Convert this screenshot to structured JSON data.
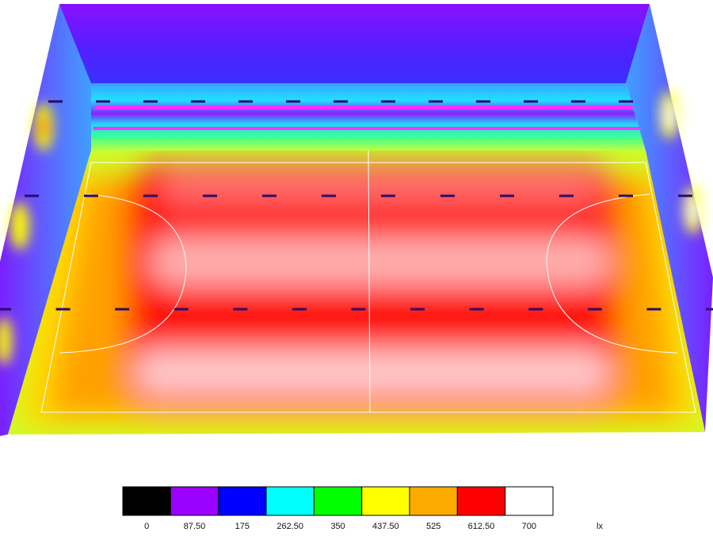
{
  "legend": {
    "labels": [
      "0",
      "87.50",
      "175",
      "262.50",
      "350",
      "437.50",
      "525",
      "612.50",
      "700"
    ],
    "colors": [
      "#000000",
      "#9a00ff",
      "#0000ff",
      "#00ffff",
      "#00ff00",
      "#ffff00",
      "#ffaa00",
      "#ff0000",
      "#ffffff"
    ],
    "unit": "lx"
  }
}
